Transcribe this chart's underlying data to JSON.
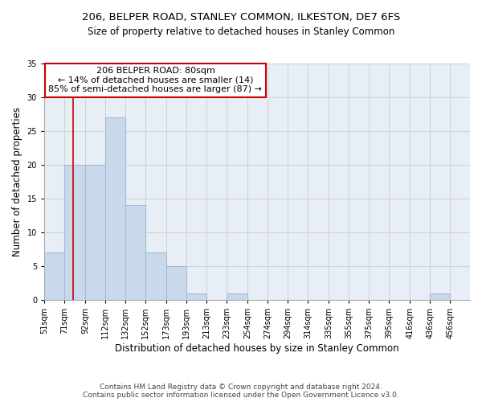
{
  "title_line1": "206, BELPER ROAD, STANLEY COMMON, ILKESTON, DE7 6FS",
  "title_line2": "Size of property relative to detached houses in Stanley Common",
  "xlabel": "Distribution of detached houses by size in Stanley Common",
  "ylabel": "Number of detached properties",
  "bin_edges": [
    51,
    71,
    92,
    112,
    132,
    152,
    173,
    193,
    213,
    233,
    254,
    274,
    294,
    314,
    335,
    355,
    375,
    395,
    416,
    436,
    456
  ],
  "bar_heights": [
    7,
    20,
    20,
    27,
    14,
    7,
    5,
    1,
    0,
    1,
    0,
    0,
    0,
    0,
    0,
    0,
    0,
    0,
    0,
    1
  ],
  "bar_color": "#c9d9eb",
  "bar_edgecolor": "#a0bdd4",
  "bar_linewidth": 0.8,
  "vline_x": 80,
  "vline_color": "#cc0000",
  "vline_linewidth": 1.2,
  "annotation_line1": "206 BELPER ROAD: 80sqm",
  "annotation_line2": "← 14% of detached houses are smaller (14)",
  "annotation_line3": "85% of semi-detached houses are larger (87) →",
  "ylim": [
    0,
    35
  ],
  "yticks": [
    0,
    5,
    10,
    15,
    20,
    25,
    30,
    35
  ],
  "grid_color": "#cccccc",
  "background_color": "#e8eef5",
  "footer_line1": "Contains HM Land Registry data © Crown copyright and database right 2024.",
  "footer_line2": "Contains public sector information licensed under the Open Government Licence v3.0.",
  "title_fontsize": 9.5,
  "subtitle_fontsize": 8.5,
  "tick_label_fontsize": 7,
  "ylabel_fontsize": 8.5,
  "xlabel_fontsize": 8.5,
  "annotation_fontsize": 8,
  "footer_fontsize": 6.5
}
